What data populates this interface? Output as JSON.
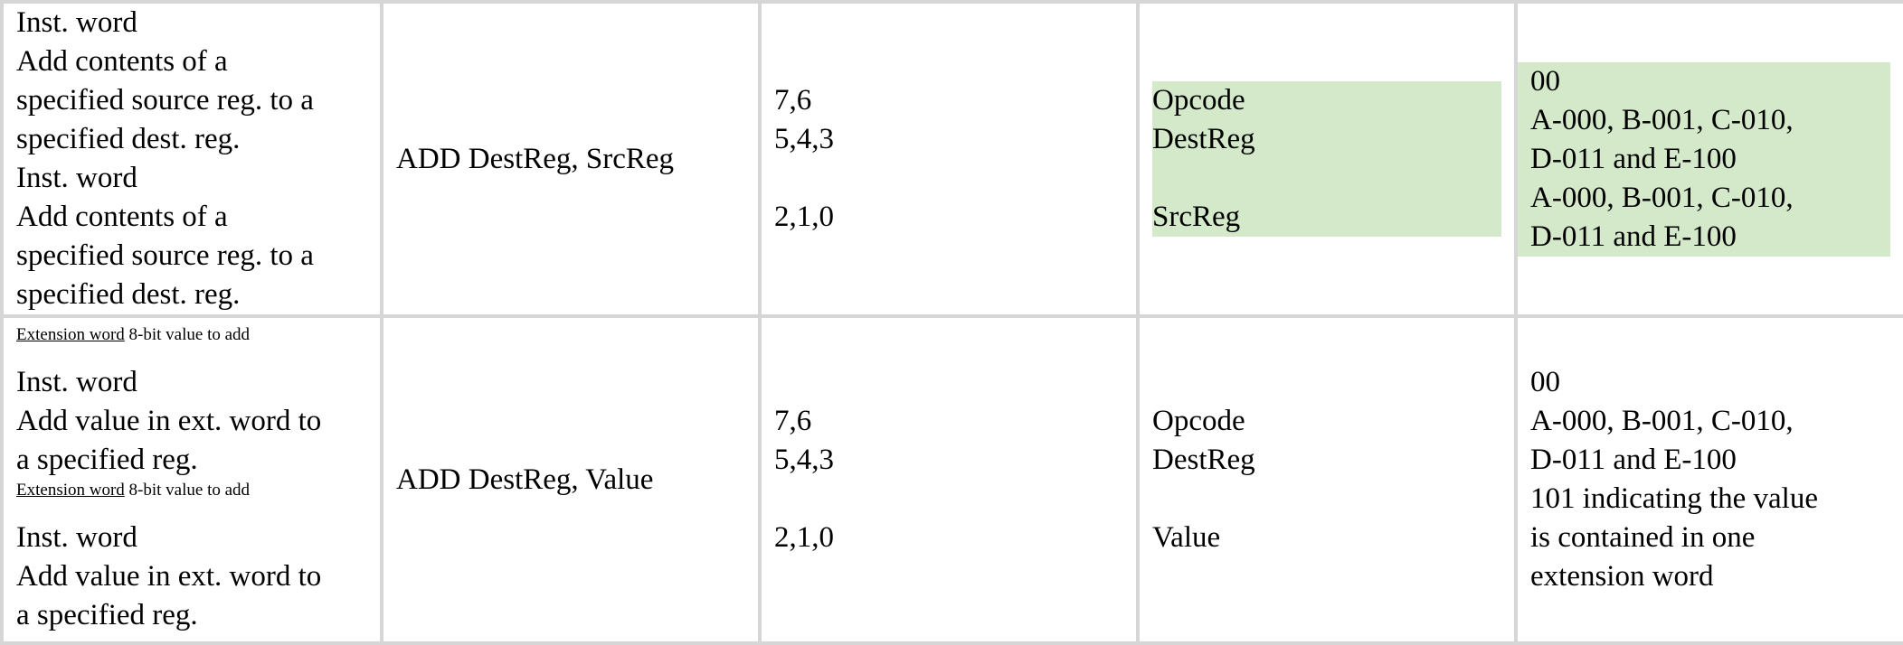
{
  "rows": [
    {
      "description_lines": [
        "Inst. word",
        "Add contents of  a",
        "specified source reg.  to a",
        "specified dest. reg.",
        "Inst. word",
        "Add contents of  a",
        "specified source reg.  to a",
        "specified dest. reg."
      ],
      "syntax": "ADD DestReg, SrcReg",
      "bits": [
        "7,6",
        "5,4,3",
        "2,1,0"
      ],
      "fields": [
        "Opcode",
        "DestReg",
        "SrcReg"
      ],
      "values": [
        "00",
        "A-000, B-001, C-010,",
        "D-011 and E-100",
        "A-000, B-001, C-010,",
        "D-011 and E-100"
      ]
    },
    {
      "ext_label": "Extension word",
      "ext_text": " 8-bit value to add",
      "description_lines": [
        "Inst. word",
        "Add value in ext. word to",
        "a specified reg."
      ],
      "ext_label_2": "Extension word",
      "ext_text_2": " 8-bit value to add",
      "description_lines_2": [
        "Inst. word",
        "Add value in ext. word to",
        "a specified reg."
      ],
      "syntax": "ADD DestReg, Value",
      "bits": [
        "7,6",
        "5,4,3",
        "2,1,0"
      ],
      "fields": [
        "Opcode",
        "DestReg",
        "Value"
      ],
      "values": [
        "00",
        "A-000, B-001, C-010,",
        "D-011 and E-100",
        "101 indicating the value",
        "is contained in one",
        "extension word"
      ]
    }
  ],
  "colors": {
    "highlight": "#d3e9c9",
    "border": "#d6d6d6"
  }
}
